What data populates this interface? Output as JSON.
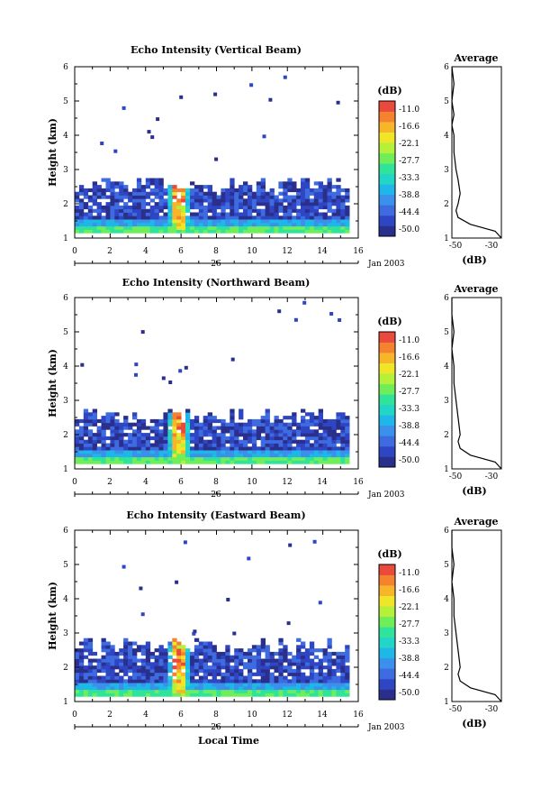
{
  "chart_data": [
    {
      "type": "heatmap",
      "title": "Echo Intensity (Vertical Beam)",
      "ylabel": "Height (km)",
      "xlim": [
        0,
        16
      ],
      "ylim": [
        1,
        6
      ],
      "xticks": [
        "0",
        "2",
        "4",
        "6",
        "8",
        "10",
        "12",
        "14",
        "16"
      ],
      "yticks": [
        "1",
        "2",
        "3",
        "4",
        "5",
        "6"
      ],
      "date_day": "26",
      "date_label": "Jan 2003",
      "colorbar_unit": "(dB)",
      "colorbar_ticks": [
        "-11.0",
        "-16.6",
        "-22.1",
        "-27.7",
        "-33.3",
        "-38.8",
        "-44.4",
        "-50.0"
      ],
      "data_top_km": 2.5,
      "spike_time": 5.7,
      "avg_panel": {
        "title": "Average",
        "xlabel": "(dB)",
        "xticks": [
          "-50",
          "-30"
        ],
        "profile": [
          [
            1.0,
            -25
          ],
          [
            1.2,
            -30
          ],
          [
            1.4,
            -42
          ],
          [
            1.6,
            -48
          ],
          [
            1.8,
            -49
          ],
          [
            2.0,
            -48
          ],
          [
            2.3,
            -47
          ],
          [
            2.7,
            -48
          ],
          [
            3.0,
            -49
          ],
          [
            3.5,
            -50
          ],
          [
            4.0,
            -50
          ],
          [
            4.3,
            -51
          ],
          [
            4.6,
            -50
          ],
          [
            5.0,
            -51
          ],
          [
            5.5,
            -50
          ],
          [
            6.0,
            -51
          ]
        ]
      }
    },
    {
      "type": "heatmap",
      "title": "Echo Intensity (Northward Beam)",
      "ylabel": "Height (km)",
      "xlim": [
        0,
        16
      ],
      "ylim": [
        1,
        6
      ],
      "xticks": [
        "0",
        "2",
        "4",
        "6",
        "8",
        "10",
        "12",
        "14",
        "16"
      ],
      "yticks": [
        "1",
        "2",
        "3",
        "4",
        "5",
        "6"
      ],
      "date_day": "26",
      "date_label": "Jan 2003",
      "colorbar_unit": "(dB)",
      "colorbar_ticks": [
        "-11.0",
        "-16.6",
        "-22.1",
        "-27.7",
        "-33.3",
        "-38.8",
        "-44.4",
        "-50.0"
      ],
      "data_top_km": 2.5,
      "spike_time": 5.7,
      "avg_panel": {
        "title": "Average",
        "xlabel": "(dB)",
        "xticks": [
          "-50",
          "-30"
        ],
        "profile": [
          [
            1.0,
            -25
          ],
          [
            1.2,
            -30
          ],
          [
            1.4,
            -42
          ],
          [
            1.6,
            -47
          ],
          [
            1.8,
            -48
          ],
          [
            2.0,
            -47
          ],
          [
            2.5,
            -48
          ],
          [
            3.0,
            -49
          ],
          [
            3.5,
            -50
          ],
          [
            4.0,
            -50
          ],
          [
            4.5,
            -51
          ],
          [
            5.0,
            -50
          ],
          [
            5.5,
            -51
          ],
          [
            6.0,
            -51
          ]
        ]
      }
    },
    {
      "type": "heatmap",
      "title": "Echo Intensity (Eastward Beam)",
      "ylabel": "Height (km)",
      "xlabel": "Local Time",
      "xlim": [
        0,
        16
      ],
      "ylim": [
        1,
        6
      ],
      "xticks": [
        "0",
        "2",
        "4",
        "6",
        "8",
        "10",
        "12",
        "14",
        "16"
      ],
      "yticks": [
        "1",
        "2",
        "3",
        "4",
        "5",
        "6"
      ],
      "date_day": "26",
      "date_label": "Jan 2003",
      "colorbar_unit": "(dB)",
      "colorbar_ticks": [
        "-11.0",
        "-16.6",
        "-22.1",
        "-27.7",
        "-33.3",
        "-38.8",
        "-44.4",
        "-50.0"
      ],
      "data_top_km": 2.6,
      "spike_time": 5.7,
      "avg_panel": {
        "title": "Average",
        "xlabel": "(dB)",
        "xticks": [
          "-50",
          "-30"
        ],
        "profile": [
          [
            1.0,
            -25
          ],
          [
            1.2,
            -30
          ],
          [
            1.4,
            -42
          ],
          [
            1.6,
            -47
          ],
          [
            1.8,
            -48
          ],
          [
            2.0,
            -47
          ],
          [
            2.5,
            -48
          ],
          [
            3.0,
            -49
          ],
          [
            3.5,
            -50
          ],
          [
            4.0,
            -50
          ],
          [
            4.5,
            -51
          ],
          [
            5.0,
            -50
          ],
          [
            5.5,
            -51
          ],
          [
            6.0,
            -51
          ]
        ]
      }
    }
  ],
  "colors": {
    "scale": [
      "#2b2f8c",
      "#2f46c4",
      "#3f6be0",
      "#3a90ea",
      "#1fb6e8",
      "#22d5c6",
      "#2fe39a",
      "#6fee5a",
      "#b5f03a",
      "#efe629",
      "#f7b52a",
      "#f5822f",
      "#ea4a3b"
    ]
  }
}
